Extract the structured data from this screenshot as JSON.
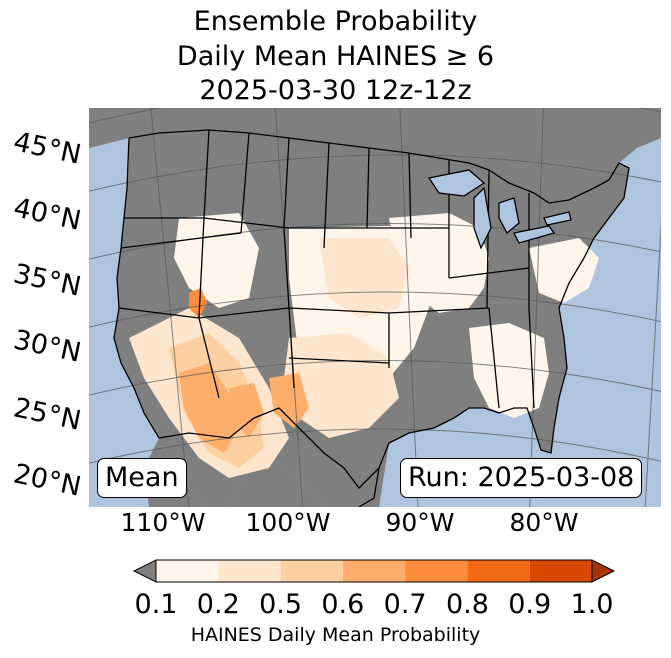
{
  "title": {
    "line1": "Ensemble Probability",
    "line2": "Daily Mean HAINES ≥ 6",
    "line3": "2025-03-30 12z-12z"
  },
  "map": {
    "lat_labels": [
      "45°N",
      "40°N",
      "35°N",
      "30°N",
      "25°N",
      "20°N"
    ],
    "lon_labels": [
      "110°W",
      "100°W",
      "90°W",
      "80°W"
    ],
    "mean_label": "Mean",
    "run_label": "Run: 2025-03-08",
    "colors": {
      "ocean": "#aec4df",
      "land_masked": "#7f7f7f",
      "graticule": "#555555",
      "border": "#000000"
    }
  },
  "colorbar": {
    "ticks": [
      "0.1",
      "0.2",
      "0.5",
      "0.6",
      "0.7",
      "0.8",
      "0.9",
      "1.0"
    ],
    "colors": [
      "#fff5eb",
      "#fee6ce",
      "#fdd0a2",
      "#fdae6b",
      "#fd8d3c",
      "#f16913",
      "#d94801"
    ],
    "under_color": "#7f7f7f",
    "over_color": "#a63603",
    "label": "HAINES Daily Mean Probability"
  }
}
